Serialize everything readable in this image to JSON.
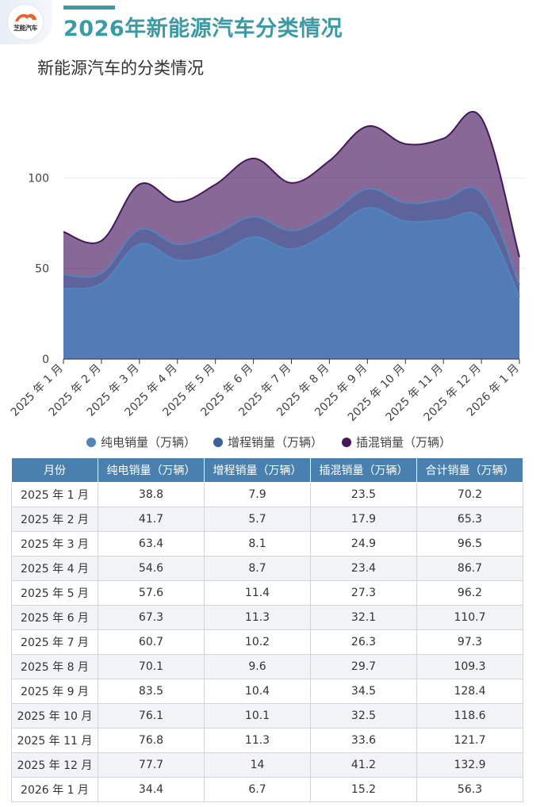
{
  "header": {
    "logo_text": "芝能汽车",
    "title": "2026年新能源汽车分类情况"
  },
  "watermark": "芝能汽车",
  "colors": {
    "bev": "#4f86c0",
    "erev": "#3e5f9e",
    "phev": "#46175f",
    "title": "#3a9aa6",
    "table_header": "#4a80b0"
  },
  "chart_data": {
    "type": "area",
    "stacked": true,
    "title": "新能源汽车的分类情况",
    "xlabel": "",
    "ylabel": "",
    "ylim": [
      0,
      150
    ],
    "yticks": [
      0,
      50,
      100
    ],
    "grid": true,
    "legend_position": "bottom",
    "categories": [
      "2025 年 1 月",
      "2025 年 2 月",
      "2025 年 3 月",
      "2025 年 4 月",
      "2025 年 5 月",
      "2025 年 6 月",
      "2025 年 7 月",
      "2025 年 8 月",
      "2025 年 9 月",
      "2025 年 10 月",
      "2025 年 11 月",
      "2025 年 12 月",
      "2026 年 1 月"
    ],
    "series": [
      {
        "name": "纯电销量（万辆）",
        "values": [
          38.8,
          41.7,
          63.4,
          54.6,
          57.6,
          67.3,
          60.7,
          70.1,
          83.5,
          76.1,
          76.8,
          77.7,
          34.4
        ]
      },
      {
        "name": "增程销量（万辆）",
        "values": [
          7.9,
          5.7,
          8.1,
          8.7,
          11.4,
          11.3,
          10.2,
          9.6,
          10.4,
          10.1,
          11.3,
          14,
          6.7
        ]
      },
      {
        "name": "插混销量（万辆）",
        "values": [
          23.5,
          17.9,
          24.9,
          23.4,
          27.3,
          32.1,
          26.3,
          29.7,
          34.5,
          32.5,
          33.6,
          41.2,
          15.2
        ]
      }
    ]
  },
  "table": {
    "headers": [
      "月份",
      "纯电销量（万辆）",
      "增程销量（万辆）",
      "插混销量（万辆）",
      "合计销量（万辆）"
    ],
    "rows": [
      [
        "2025 年 1 月",
        "38.8",
        "7.9",
        "23.5",
        "70.2"
      ],
      [
        "2025 年 2 月",
        "41.7",
        "5.7",
        "17.9",
        "65.3"
      ],
      [
        "2025 年 3 月",
        "63.4",
        "8.1",
        "24.9",
        "96.5"
      ],
      [
        "2025 年 4 月",
        "54.6",
        "8.7",
        "23.4",
        "86.7"
      ],
      [
        "2025 年 5 月",
        "57.6",
        "11.4",
        "27.3",
        "96.2"
      ],
      [
        "2025 年 6 月",
        "67.3",
        "11.3",
        "32.1",
        "110.7"
      ],
      [
        "2025 年 7 月",
        "60.7",
        "10.2",
        "26.3",
        "97.3"
      ],
      [
        "2025 年 8 月",
        "70.1",
        "9.6",
        "29.7",
        "109.3"
      ],
      [
        "2025 年 9 月",
        "83.5",
        "10.4",
        "34.5",
        "128.4"
      ],
      [
        "2025 年 10 月",
        "76.1",
        "10.1",
        "32.5",
        "118.6"
      ],
      [
        "2025 年 11 月",
        "76.8",
        "11.3",
        "33.6",
        "121.7"
      ],
      [
        "2025 年 12 月",
        "77.7",
        "14",
        "41.2",
        "132.9"
      ],
      [
        "2026 年 1 月",
        "34.4",
        "6.7",
        "15.2",
        "56.3"
      ]
    ]
  }
}
